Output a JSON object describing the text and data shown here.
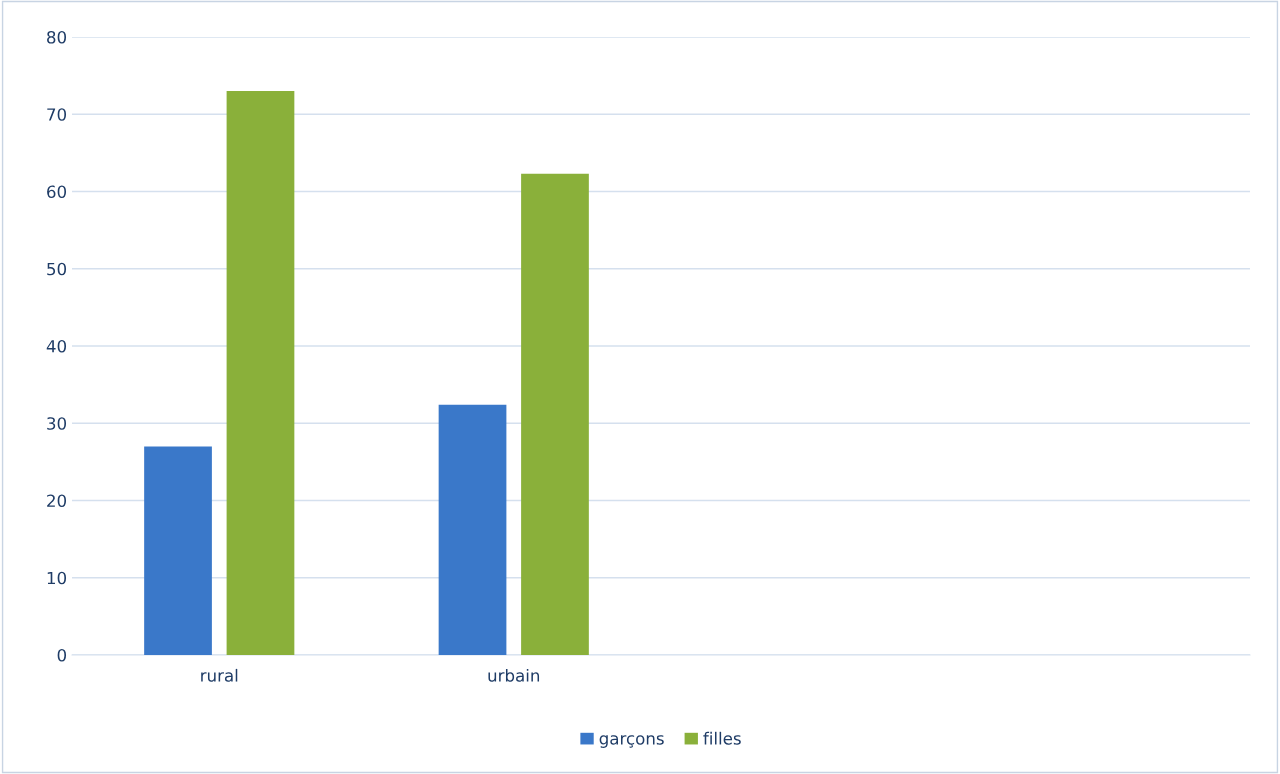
{
  "chart_data": {
    "type": "bar",
    "categories": [
      "rural",
      "urbain",
      null,
      null
    ],
    "series": [
      {
        "name": "garçons",
        "color": "#3a78c9",
        "values": [
          27,
          32.4,
          null,
          null
        ]
      },
      {
        "name": "filles",
        "color": "#8ab03a",
        "values": [
          73,
          62.3,
          null,
          null
        ]
      }
    ],
    "ylim": [
      0,
      80
    ],
    "yticks": [
      0,
      10,
      20,
      30,
      40,
      50,
      60,
      70,
      80
    ],
    "grid": "y",
    "legend": "bottom"
  }
}
